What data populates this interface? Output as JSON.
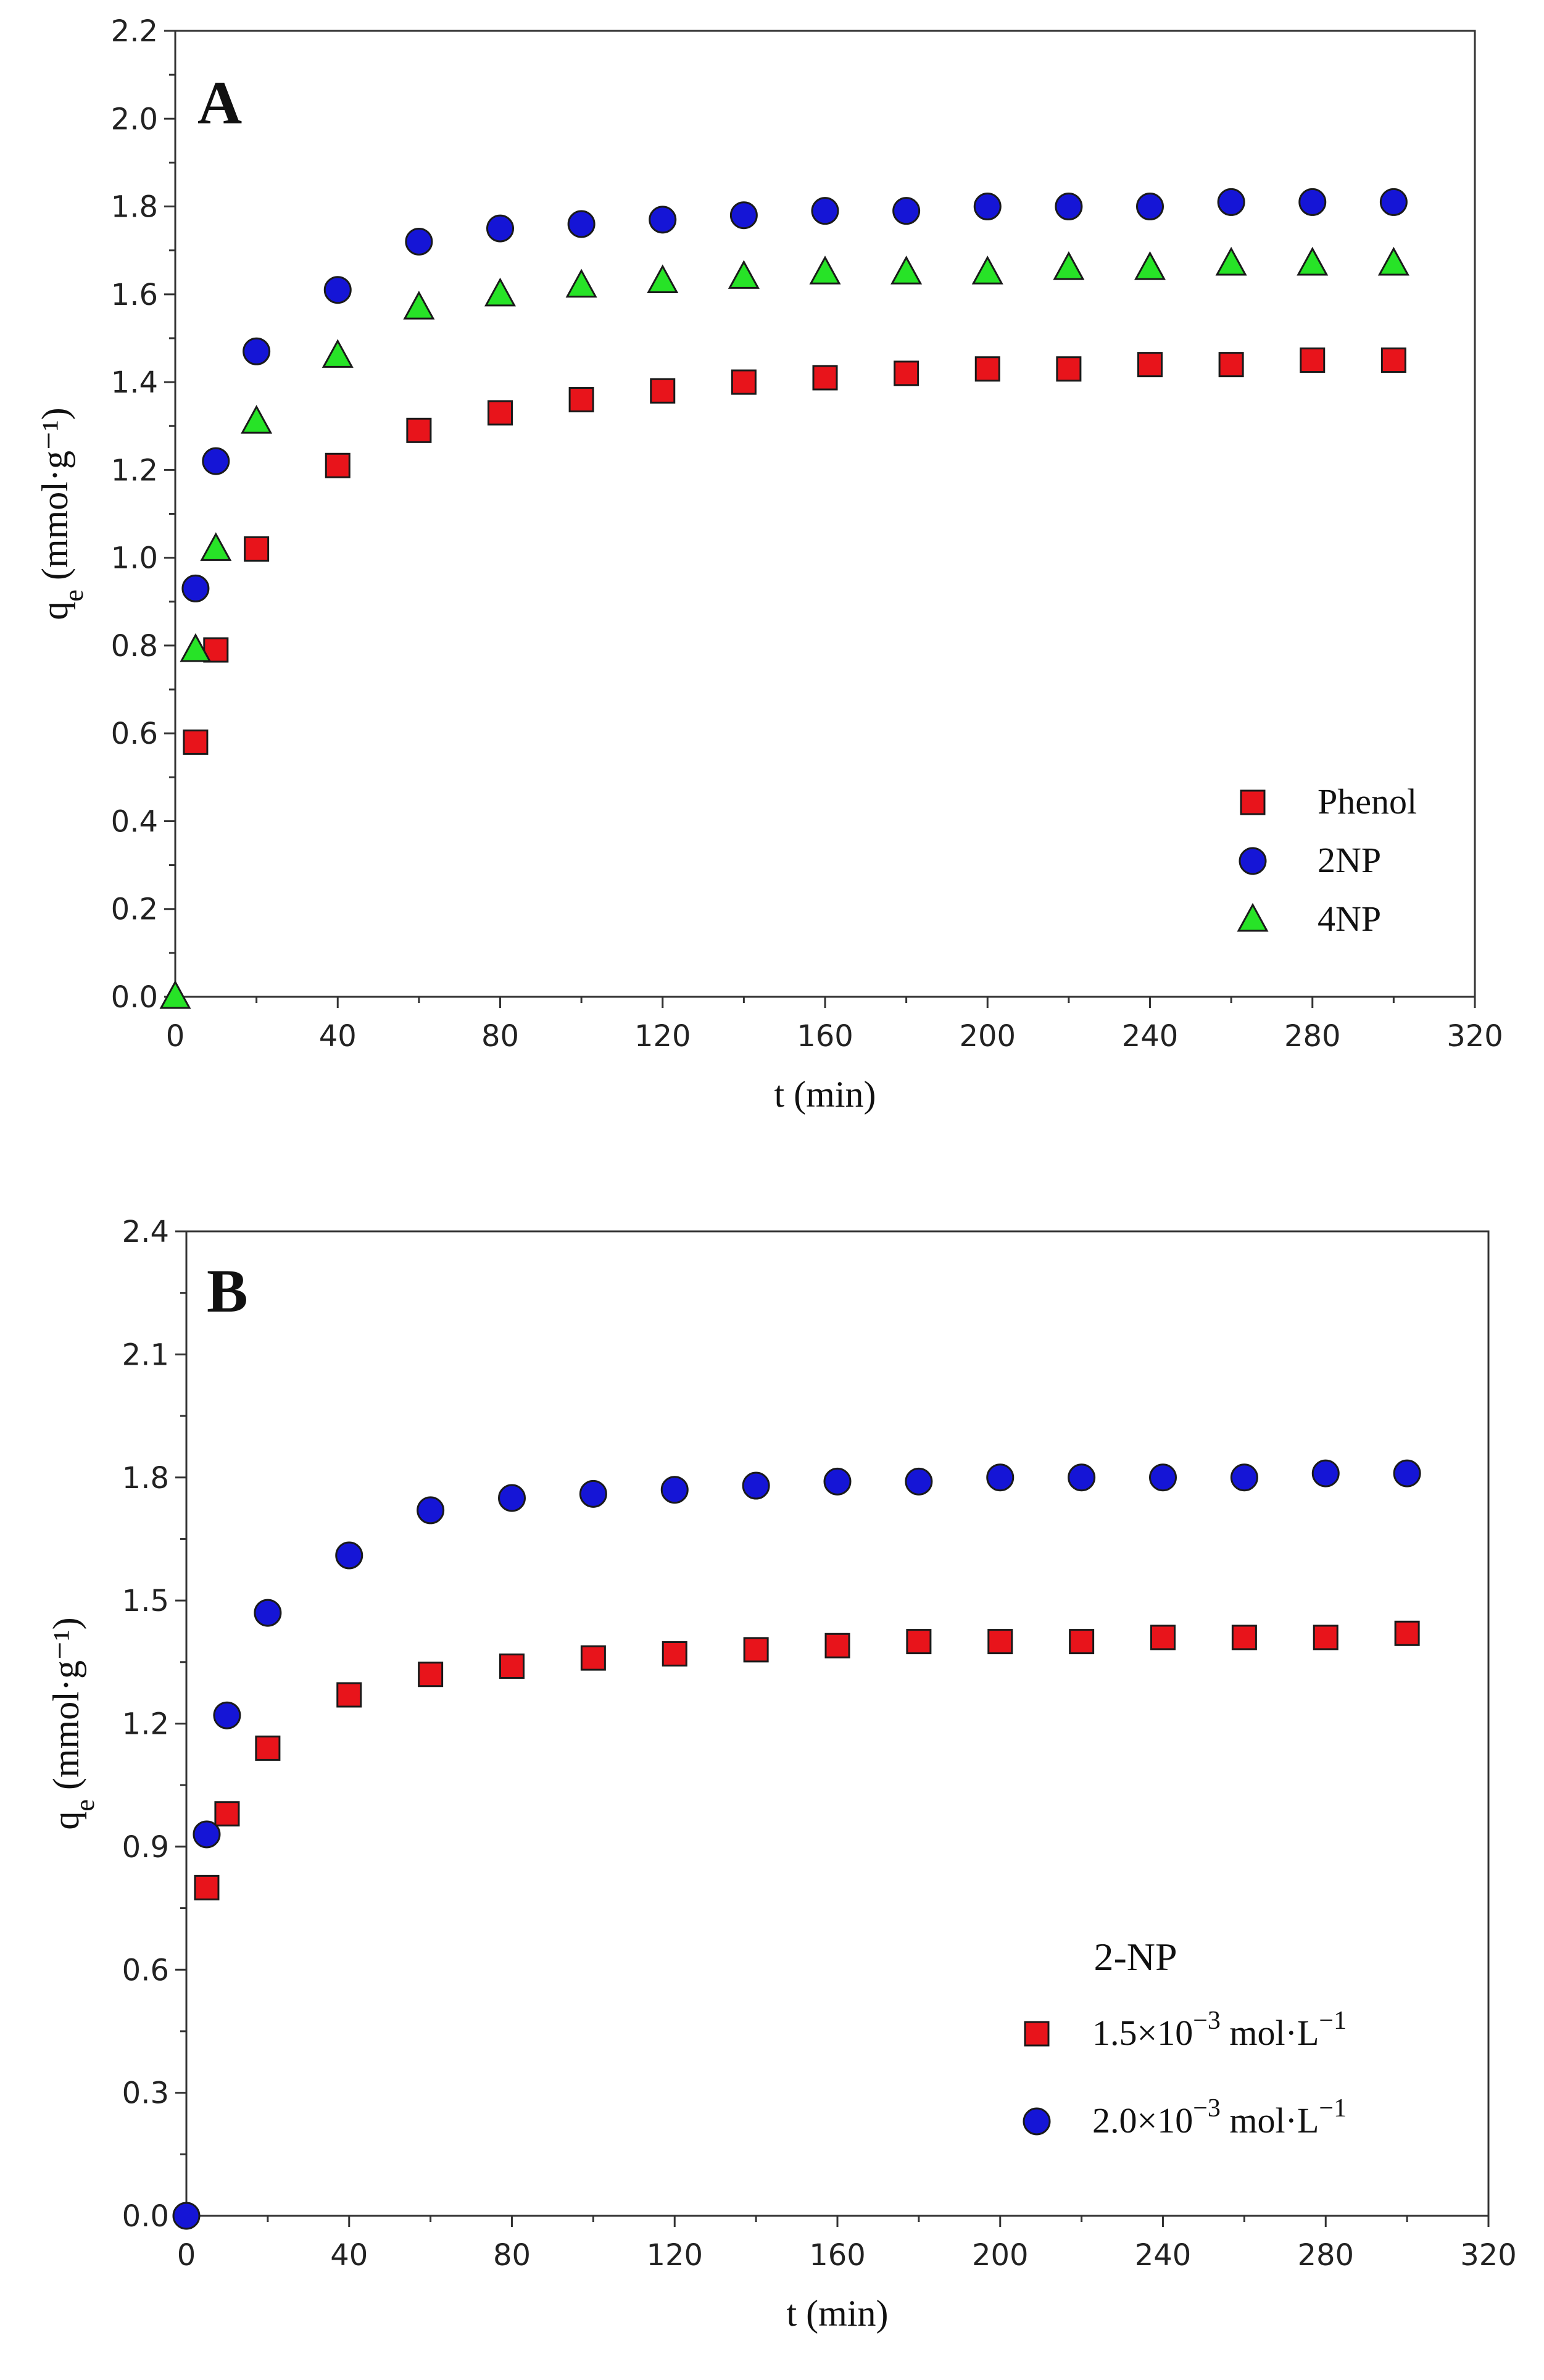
{
  "colors": {
    "phenol": "#e8141b",
    "np2": "#1515d6",
    "np4": "#27e327",
    "axis": "#333333"
  },
  "chart_data": [
    {
      "type": "scatter",
      "panel_label": "A",
      "xlabel": "t (min)",
      "ylabel": {
        "symbol": "q",
        "subscript": "e",
        "unit": " (mmol·g⁻¹)"
      },
      "xlim": [
        0,
        320
      ],
      "ylim": [
        0.0,
        2.2
      ],
      "xticks": [
        "0",
        "40",
        "80",
        "120",
        "160",
        "200",
        "240",
        "280",
        "320"
      ],
      "yticks": [
        "0.0",
        "0.2",
        "0.4",
        "0.6",
        "0.8",
        "1.0",
        "1.2",
        "1.4",
        "1.6",
        "1.8",
        "2.0",
        "2.2"
      ],
      "legend_position": "bottom-right",
      "series": [
        {
          "name": "Phenol",
          "marker": "square",
          "color": "#e8141b",
          "x": [
            5,
            10,
            20,
            40,
            60,
            80,
            100,
            120,
            140,
            160,
            180,
            200,
            220,
            240,
            260,
            280,
            300
          ],
          "y": [
            0.58,
            0.79,
            1.02,
            1.21,
            1.29,
            1.33,
            1.36,
            1.38,
            1.4,
            1.41,
            1.42,
            1.43,
            1.43,
            1.44,
            1.44,
            1.45,
            1.45
          ]
        },
        {
          "name": "2NP",
          "marker": "circle",
          "color": "#1515d6",
          "x": [
            5,
            10,
            20,
            40,
            60,
            80,
            100,
            120,
            140,
            160,
            180,
            200,
            220,
            240,
            260,
            280,
            300
          ],
          "y": [
            0.93,
            1.22,
            1.47,
            1.61,
            1.72,
            1.75,
            1.76,
            1.77,
            1.78,
            1.79,
            1.79,
            1.8,
            1.8,
            1.8,
            1.81,
            1.81,
            1.81
          ]
        },
        {
          "name": "4NP",
          "marker": "triangle",
          "color": "#27e327",
          "x": [
            0,
            5,
            10,
            20,
            40,
            60,
            80,
            100,
            120,
            140,
            160,
            180,
            200,
            220,
            240,
            260,
            280,
            300
          ],
          "y": [
            0.0,
            0.79,
            1.02,
            1.31,
            1.46,
            1.57,
            1.6,
            1.62,
            1.63,
            1.64,
            1.65,
            1.65,
            1.65,
            1.66,
            1.66,
            1.67,
            1.67,
            1.67
          ]
        }
      ]
    },
    {
      "type": "scatter",
      "panel_label": "B",
      "xlabel": "t (min)",
      "ylabel": {
        "symbol": "q",
        "subscript": "e",
        "unit": " (mmol·g⁻¹)"
      },
      "xlim": [
        0,
        320
      ],
      "ylim": [
        0.0,
        2.4
      ],
      "xticks": [
        "0",
        "40",
        "80",
        "120",
        "160",
        "200",
        "240",
        "280",
        "320"
      ],
      "yticks": [
        "0.0",
        "0.3",
        "0.6",
        "0.9",
        "1.2",
        "1.5",
        "1.8",
        "2.1",
        "2.4"
      ],
      "legend_title": "2-NP",
      "legend_position": "bottom-right",
      "series": [
        {
          "name": "1.5×10−3 mol·L−1",
          "label_parts": {
            "base": "1.5×10",
            "exp": "−3",
            "unit": " mol·L",
            "unit_exp": "−1"
          },
          "marker": "square",
          "color": "#e8141b",
          "x": [
            5,
            10,
            20,
            40,
            60,
            80,
            100,
            120,
            140,
            160,
            180,
            200,
            220,
            240,
            260,
            280,
            300
          ],
          "y": [
            0.8,
            0.98,
            1.14,
            1.27,
            1.32,
            1.34,
            1.36,
            1.37,
            1.38,
            1.39,
            1.4,
            1.4,
            1.4,
            1.41,
            1.41,
            1.41,
            1.42
          ]
        },
        {
          "name": "2.0×10−3 mol·L−1",
          "label_parts": {
            "base": "2.0×10",
            "exp": "−3",
            "unit": " mol·L",
            "unit_exp": "−1"
          },
          "marker": "circle",
          "color": "#1515d6",
          "x": [
            0,
            5,
            10,
            20,
            40,
            60,
            80,
            100,
            120,
            140,
            160,
            180,
            200,
            220,
            240,
            260,
            280,
            300
          ],
          "y": [
            0.0,
            0.93,
            1.22,
            1.47,
            1.61,
            1.72,
            1.75,
            1.76,
            1.77,
            1.78,
            1.79,
            1.79,
            1.8,
            1.8,
            1.8,
            1.8,
            1.81,
            1.81
          ]
        }
      ]
    }
  ]
}
